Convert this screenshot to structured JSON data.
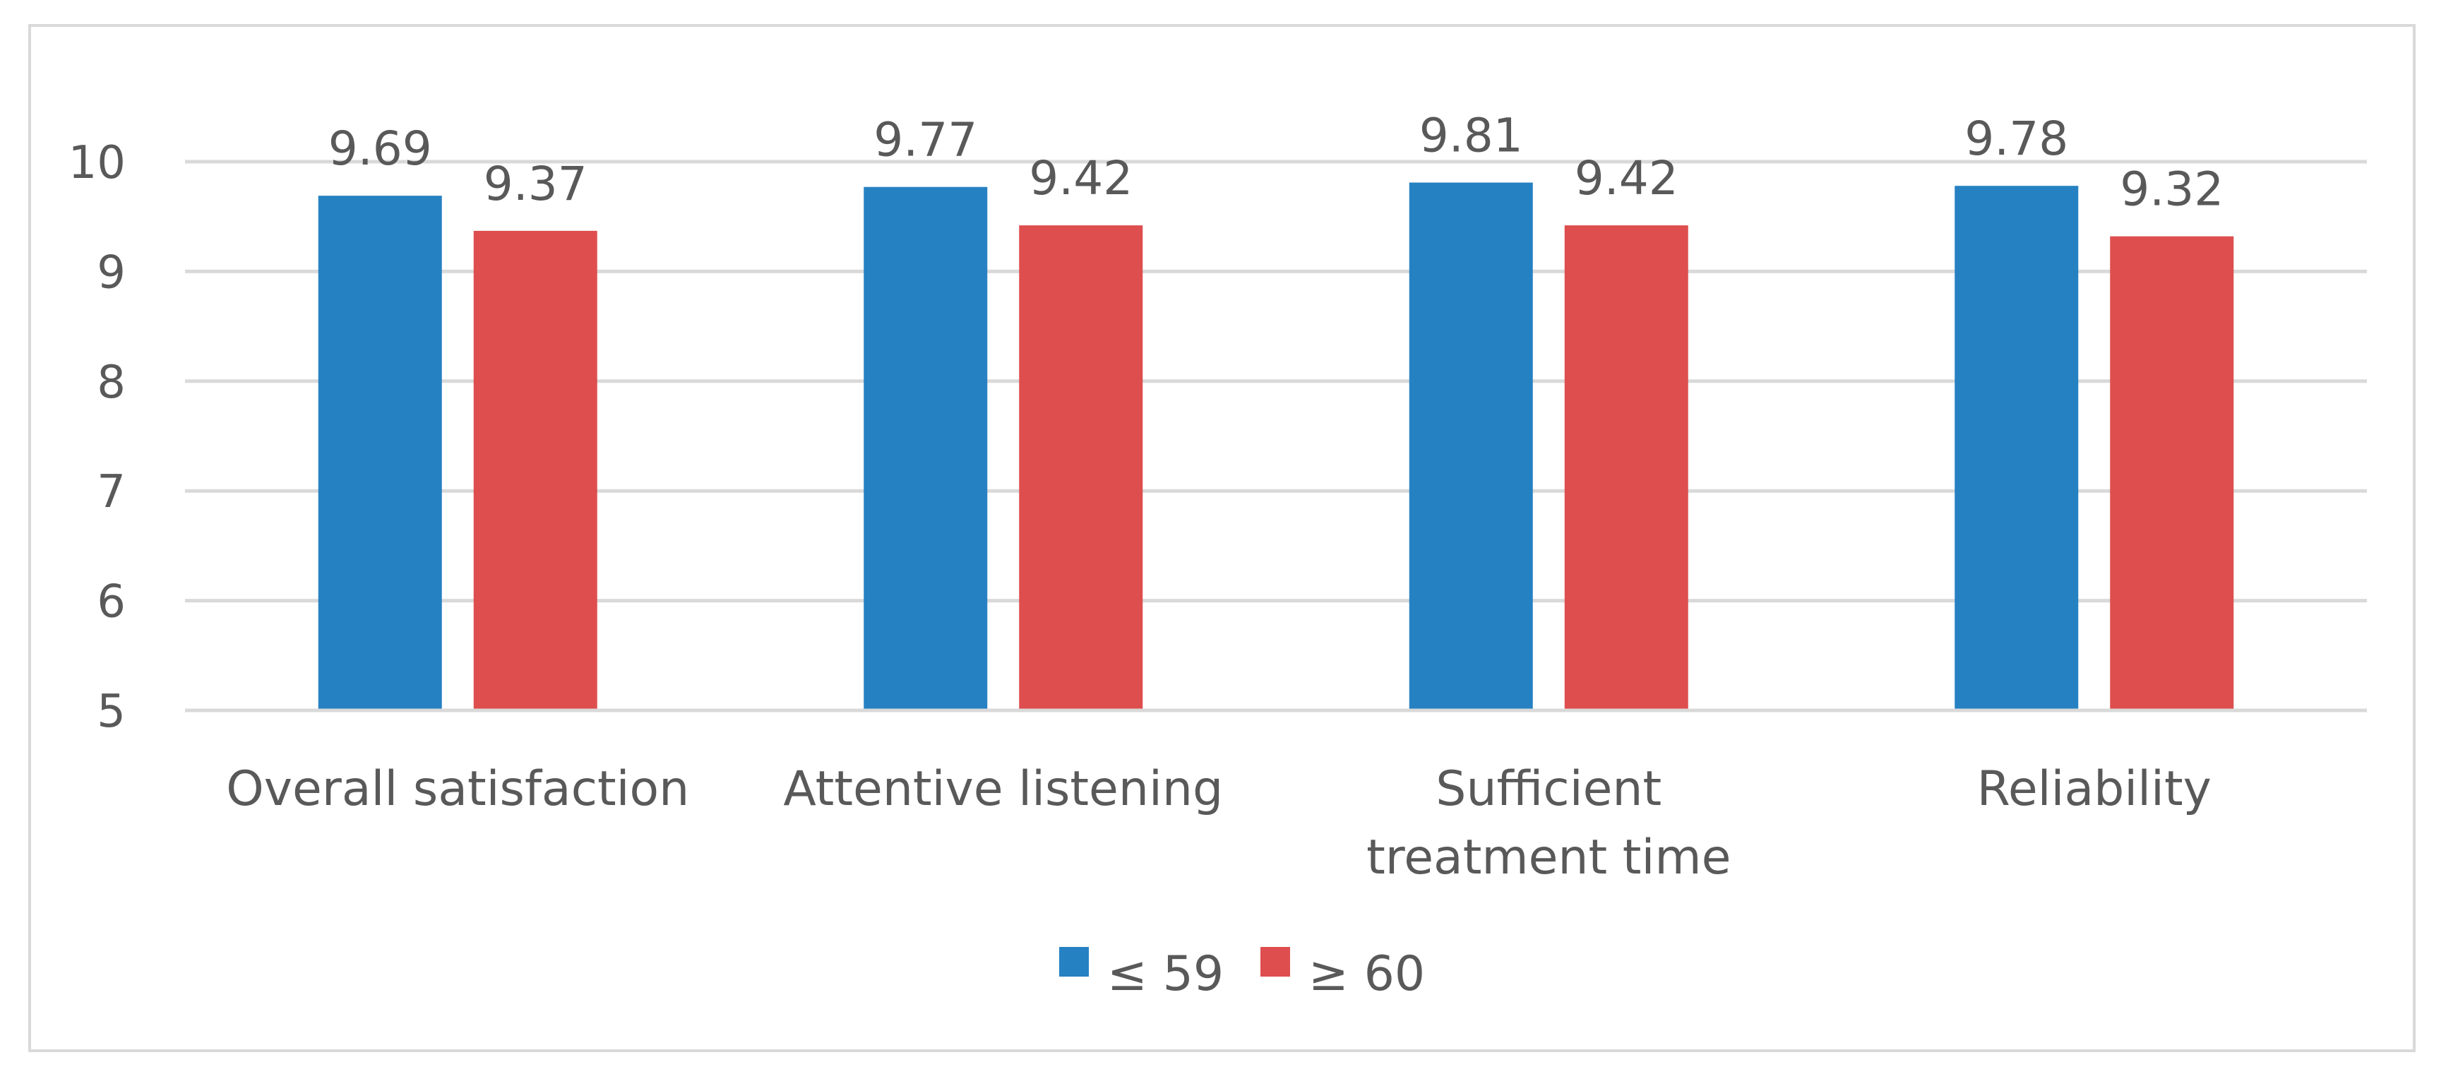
{
  "chart_data": {
    "type": "bar",
    "title": "",
    "xlabel": "",
    "ylabel": "",
    "ylim": [
      5,
      10
    ],
    "yticks": [
      "5",
      "6",
      "7",
      "8",
      "9",
      "10"
    ],
    "grid": true,
    "legend_position": "bottom",
    "categories": [
      [
        "Overall satisfaction"
      ],
      [
        "Attentive listening"
      ],
      [
        "Sufficient",
        "treatment time"
      ],
      [
        "Reliability"
      ]
    ],
    "series": [
      {
        "name": "≤ 59",
        "color": "#2681c2",
        "values": [
          9.69,
          9.77,
          9.81,
          9.78
        ],
        "labels": [
          "9.69",
          "9.77",
          "9.81",
          "9.78"
        ]
      },
      {
        "name": "≥ 60",
        "color": "#de4e4e",
        "values": [
          9.37,
          9.42,
          9.42,
          9.32
        ],
        "labels": [
          "9.37",
          "9.42",
          "9.42",
          "9.32"
        ]
      }
    ]
  }
}
